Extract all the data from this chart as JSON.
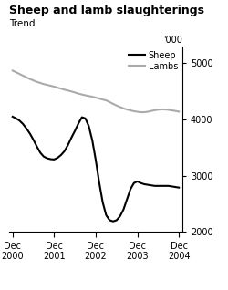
{
  "title": "Sheep and lamb slaughterings",
  "subtitle": "Trend",
  "ylabel": "'000",
  "ylim": [
    2000,
    5300
  ],
  "yticks": [
    2000,
    3000,
    4000,
    5000
  ],
  "x_labels": [
    "Dec\n2000",
    "Dec\n2001",
    "Dec\n2002",
    "Dec\n2003",
    "Dec\n2004"
  ],
  "x_positions": [
    0,
    12,
    24,
    36,
    48
  ],
  "sheep_color": "#000000",
  "lambs_color": "#aaaaaa",
  "sheep_x": [
    0,
    1,
    2,
    3,
    4,
    5,
    6,
    7,
    8,
    9,
    10,
    11,
    12,
    13,
    14,
    15,
    16,
    17,
    18,
    19,
    20,
    21,
    22,
    23,
    24,
    25,
    26,
    27,
    28,
    29,
    30,
    31,
    32,
    33,
    34,
    35,
    36,
    37,
    38,
    39,
    40,
    41,
    42,
    43,
    44,
    45,
    46,
    47,
    48
  ],
  "sheep_y": [
    4050,
    4020,
    3980,
    3920,
    3840,
    3750,
    3640,
    3520,
    3410,
    3340,
    3310,
    3295,
    3290,
    3320,
    3370,
    3440,
    3550,
    3680,
    3800,
    3930,
    4040,
    4020,
    3880,
    3630,
    3280,
    2880,
    2530,
    2300,
    2210,
    2190,
    2210,
    2280,
    2400,
    2580,
    2760,
    2870,
    2900,
    2870,
    2850,
    2840,
    2830,
    2820,
    2820,
    2820,
    2820,
    2820,
    2810,
    2800,
    2790
  ],
  "lambs_x": [
    0,
    1,
    2,
    3,
    4,
    5,
    6,
    7,
    8,
    9,
    10,
    11,
    12,
    13,
    14,
    15,
    16,
    17,
    18,
    19,
    20,
    21,
    22,
    23,
    24,
    25,
    26,
    27,
    28,
    29,
    30,
    31,
    32,
    33,
    34,
    35,
    36,
    37,
    38,
    39,
    40,
    41,
    42,
    43,
    44,
    45,
    46,
    47,
    48
  ],
  "lambs_y": [
    4870,
    4840,
    4810,
    4780,
    4750,
    4720,
    4695,
    4670,
    4650,
    4630,
    4615,
    4600,
    4585,
    4565,
    4548,
    4530,
    4515,
    4498,
    4480,
    4460,
    4445,
    4430,
    4418,
    4405,
    4390,
    4372,
    4355,
    4340,
    4310,
    4278,
    4248,
    4222,
    4198,
    4178,
    4162,
    4148,
    4138,
    4130,
    4130,
    4138,
    4152,
    4165,
    4175,
    4180,
    4178,
    4172,
    4162,
    4152,
    4140
  ],
  "background_color": "#ffffff",
  "legend_sheep": "Sheep",
  "legend_lambs": "Lambs",
  "title_fontsize": 9,
  "subtitle_fontsize": 7.5,
  "tick_fontsize": 7,
  "legend_fontsize": 7,
  "linewidth": 1.5
}
